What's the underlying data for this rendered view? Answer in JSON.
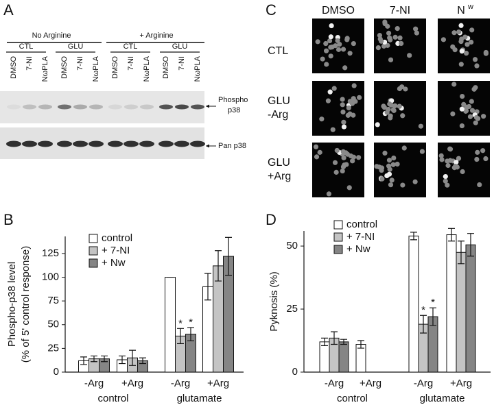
{
  "panel_labels": [
    "A",
    "B",
    "C",
    "D"
  ],
  "blot": {
    "conditions": [
      "No Arginine",
      "+ Arginine"
    ],
    "groups": [
      "CTL",
      "GLU",
      "CTL",
      "GLU"
    ],
    "lanes": [
      "DMSO",
      "7-NI",
      "NωPLA",
      "DMSO",
      "7-NI",
      "NωPLA",
      "DMSO",
      "7-NI",
      "NωPLA",
      "DMSO",
      "7-NI",
      "NωPLA"
    ],
    "phospho_label": [
      "Phospho",
      "p38"
    ],
    "pan_label": "Pan p38"
  },
  "micrographs": {
    "columns": [
      "DMSO",
      "7-NI",
      "N"
    ],
    "column_superscript": "w",
    "rows": [
      [
        "CTL"
      ],
      [
        "GLU",
        "-Arg"
      ],
      [
        "GLU",
        "+Arg"
      ]
    ]
  },
  "chart_data": [
    {
      "type": "bar",
      "ylabel": [
        "Phospho-p38 level",
        "(% of 5' control response)"
      ],
      "categories": [
        "-Arg",
        "+Arg",
        "-Arg",
        "+Arg"
      ],
      "groups": [
        "control",
        "glutamate"
      ],
      "ylim": [
        0,
        143
      ],
      "yticks": [
        0,
        25,
        50,
        75,
        100,
        125
      ],
      "series": [
        {
          "name": "control",
          "color": "#ffffff",
          "values": [
            12,
            13,
            100,
            90
          ],
          "errors": [
            4,
            4,
            0,
            14
          ]
        },
        {
          "name": "+ 7-NI",
          "color": "#c4c4c4",
          "values": [
            14,
            15,
            38,
            112
          ],
          "errors": [
            3,
            8,
            8,
            16
          ]
        },
        {
          "name": "+ Nw",
          "color": "#858585",
          "values": [
            14,
            12,
            40,
            122
          ],
          "errors": [
            3,
            3,
            7,
            20
          ]
        }
      ],
      "annotations": [
        {
          "text": "*",
          "series": 1,
          "category": 2
        },
        {
          "text": "*",
          "series": 2,
          "category": 2
        }
      ]
    },
    {
      "type": "bar",
      "ylabel": [
        "Pyknosis (%)"
      ],
      "categories": [
        "-Arg",
        "+Arg",
        "-Arg",
        "+Arg"
      ],
      "groups": [
        "control",
        "glutamate"
      ],
      "ylim": [
        0,
        56
      ],
      "yticks": [
        0,
        25,
        50
      ],
      "series": [
        {
          "name": "control",
          "color": "#ffffff",
          "values": [
            12,
            11,
            54,
            54.5
          ],
          "errors": [
            1.5,
            1.5,
            1.5,
            2.5
          ]
        },
        {
          "name": "+ 7-NI",
          "color": "#c4c4c4",
          "values": [
            13.5,
            null,
            19,
            47.5
          ],
          "errors": [
            2.5,
            null,
            3.5,
            4.5
          ]
        },
        {
          "name": "+ Nw",
          "color": "#858585",
          "values": [
            12,
            null,
            22,
            50.5
          ],
          "errors": [
            1,
            null,
            3.5,
            4.5
          ]
        }
      ],
      "annotations": [
        {
          "text": "*",
          "series": 1,
          "category": 2
        },
        {
          "text": "*",
          "series": 2,
          "category": 2
        }
      ]
    }
  ]
}
